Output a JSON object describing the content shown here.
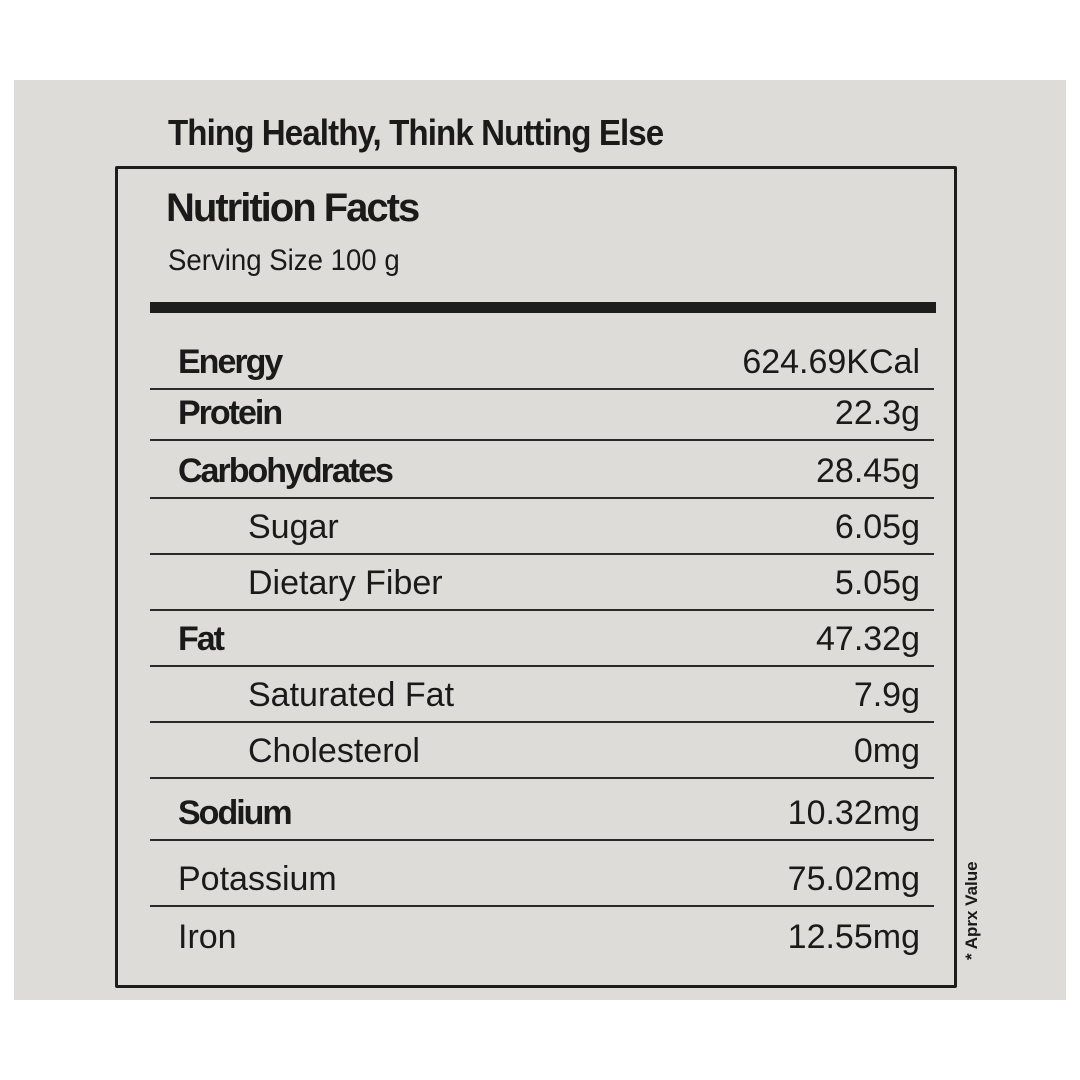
{
  "tagline": "Thing Healthy, Think Nutting Else",
  "title": "Nutrition Facts",
  "serving_size": "Serving Size 100 g",
  "rows": [
    {
      "name": "Energy",
      "value": "624.69KCal"
    },
    {
      "name": "Protein",
      "value": "22.3g"
    },
    {
      "name": "Carbohydrates",
      "value": "28.45g"
    },
    {
      "name": "Sugar",
      "value": "6.05g"
    },
    {
      "name": "Dietary Fiber",
      "value": "5.05g"
    },
    {
      "name": "Fat",
      "value": "47.32g"
    },
    {
      "name": "Saturated Fat",
      "value": "7.9g"
    },
    {
      "name": "Cholesterol",
      "value": "0mg"
    },
    {
      "name": "Sodium",
      "value": "10.32mg"
    },
    {
      "name": "Potassium",
      "value": "75.02mg"
    },
    {
      "name": "Iron",
      "value": "12.55mg"
    }
  ],
  "footnote": "* Aprx Value",
  "colors": {
    "label_background": "#dddcd8",
    "ink": "#1a1a1a"
  }
}
